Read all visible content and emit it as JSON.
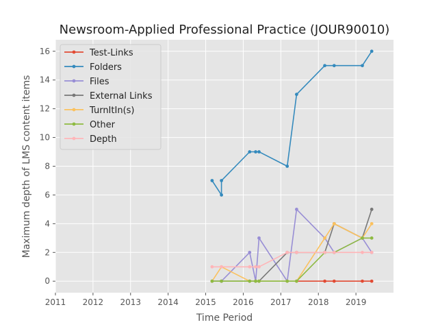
{
  "chart_data": {
    "type": "line",
    "title": "Newsroom-Applied Professional Practice (JOUR90010)",
    "xlabel": "Time Period",
    "ylabel": "Maximum depth of LMS content items",
    "xlim": [
      2011,
      2020
    ],
    "ylim": [
      -0.8,
      16.8
    ],
    "x_ticks": [
      2011,
      2012,
      2013,
      2014,
      2015,
      2016,
      2017,
      2018,
      2019
    ],
    "y_ticks": [
      0,
      2,
      4,
      6,
      8,
      10,
      12,
      14,
      16
    ],
    "grid": true,
    "legend_position": "upper-left",
    "series": [
      {
        "name": "Test-Links",
        "color": "#E24A33",
        "x": [
          2017.42,
          2018.17,
          2018.42,
          2019.17,
          2019.42
        ],
        "y": [
          0,
          0,
          0,
          0,
          0
        ]
      },
      {
        "name": "Folders",
        "color": "#348ABD",
        "x": [
          2015.17,
          2015.42,
          2015.42,
          2016.17,
          2016.33,
          2016.42,
          2017.17,
          2017.42,
          2018.17,
          2018.42,
          2019.17,
          2019.42
        ],
        "y": [
          7,
          6,
          7,
          9,
          9,
          9,
          8,
          13,
          15,
          15,
          15,
          16
        ]
      },
      {
        "name": "Files",
        "color": "#988ED5",
        "x": [
          2015.17,
          2015.42,
          2016.17,
          2016.33,
          2016.42,
          2017.17,
          2017.42,
          2018.17,
          2018.42,
          2019.17,
          2019.42
        ],
        "y": [
          0,
          0,
          2,
          0,
          3,
          0,
          5,
          3,
          2,
          3,
          2
        ]
      },
      {
        "name": "External Links",
        "color": "#777777",
        "x": [
          2015.17,
          2015.42,
          2016.17,
          2016.33,
          2016.42,
          2017.17,
          2017.42,
          2018.17,
          2018.42,
          2019.17,
          2019.42
        ],
        "y": [
          0,
          0,
          0,
          0,
          0,
          2,
          2,
          2,
          4,
          3,
          5
        ]
      },
      {
        "name": "TurnItIn(s)",
        "color": "#FBC15E",
        "x": [
          2015.17,
          2015.42,
          2016.17,
          2016.33,
          2016.42,
          2017.17,
          2017.42,
          2018.17,
          2018.42,
          2019.17,
          2019.42
        ],
        "y": [
          0,
          1,
          0,
          0,
          0,
          0,
          0,
          3,
          4,
          3,
          4
        ]
      },
      {
        "name": "Other",
        "color": "#8EBA42",
        "x": [
          2015.17,
          2015.42,
          2016.17,
          2016.33,
          2016.42,
          2017.17,
          2017.42,
          2018.17,
          2018.42,
          2019.17,
          2019.42
        ],
        "y": [
          0,
          0,
          0,
          0,
          0,
          0,
          0,
          2,
          2,
          3,
          3
        ]
      },
      {
        "name": "Depth",
        "color": "#FFB5B8",
        "x": [
          2015.17,
          2015.42,
          2016.17,
          2016.33,
          2016.42,
          2017.17,
          2017.42,
          2018.17,
          2018.42,
          2019.17,
          2019.42
        ],
        "y": [
          1,
          1,
          1,
          1,
          1,
          2,
          2,
          2,
          2,
          2,
          2
        ]
      }
    ]
  }
}
